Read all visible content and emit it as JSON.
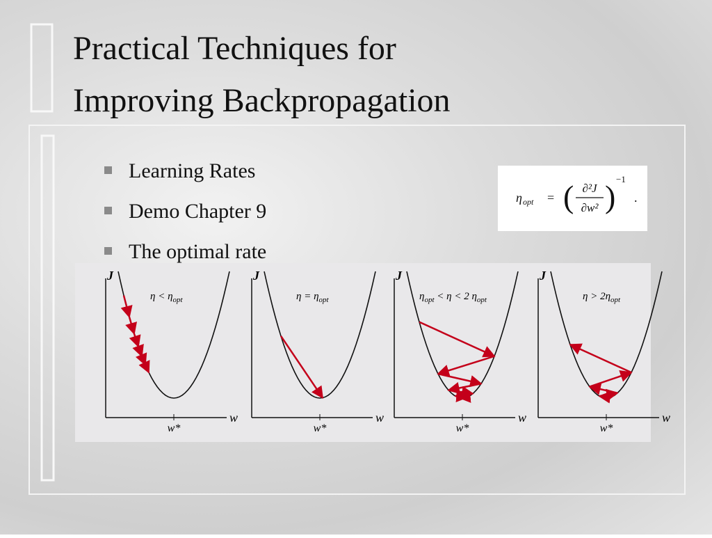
{
  "slide": {
    "title_lines": [
      "Practical Techniques for",
      "Improving Backpropagation"
    ],
    "bullets": [
      "Learning Rates",
      "Demo Chapter 9",
      "The optimal rate"
    ],
    "formula": {
      "symbol": "η",
      "subscript": "opt",
      "equals": "=",
      "numerator": "∂²J",
      "denominator": "∂w²",
      "exponent": "−1",
      "end": "."
    },
    "figure": {
      "panels": [
        {
          "y_axis": "J",
          "x_axis": "w",
          "minimum": "w*",
          "condition": [
            "η < η",
            "opt"
          ]
        },
        {
          "y_axis": "J",
          "x_axis": "w",
          "minimum": "w*",
          "condition": [
            "η = η",
            "opt"
          ]
        },
        {
          "y_axis": "J",
          "x_axis": "w",
          "minimum": "w*",
          "condition": [
            "η",
            "opt",
            " < η  < 2 η",
            "opt"
          ]
        },
        {
          "y_axis": "J",
          "x_axis": "w",
          "minimum": "w*",
          "condition": [
            "η > 2η",
            "opt"
          ]
        }
      ]
    }
  }
}
